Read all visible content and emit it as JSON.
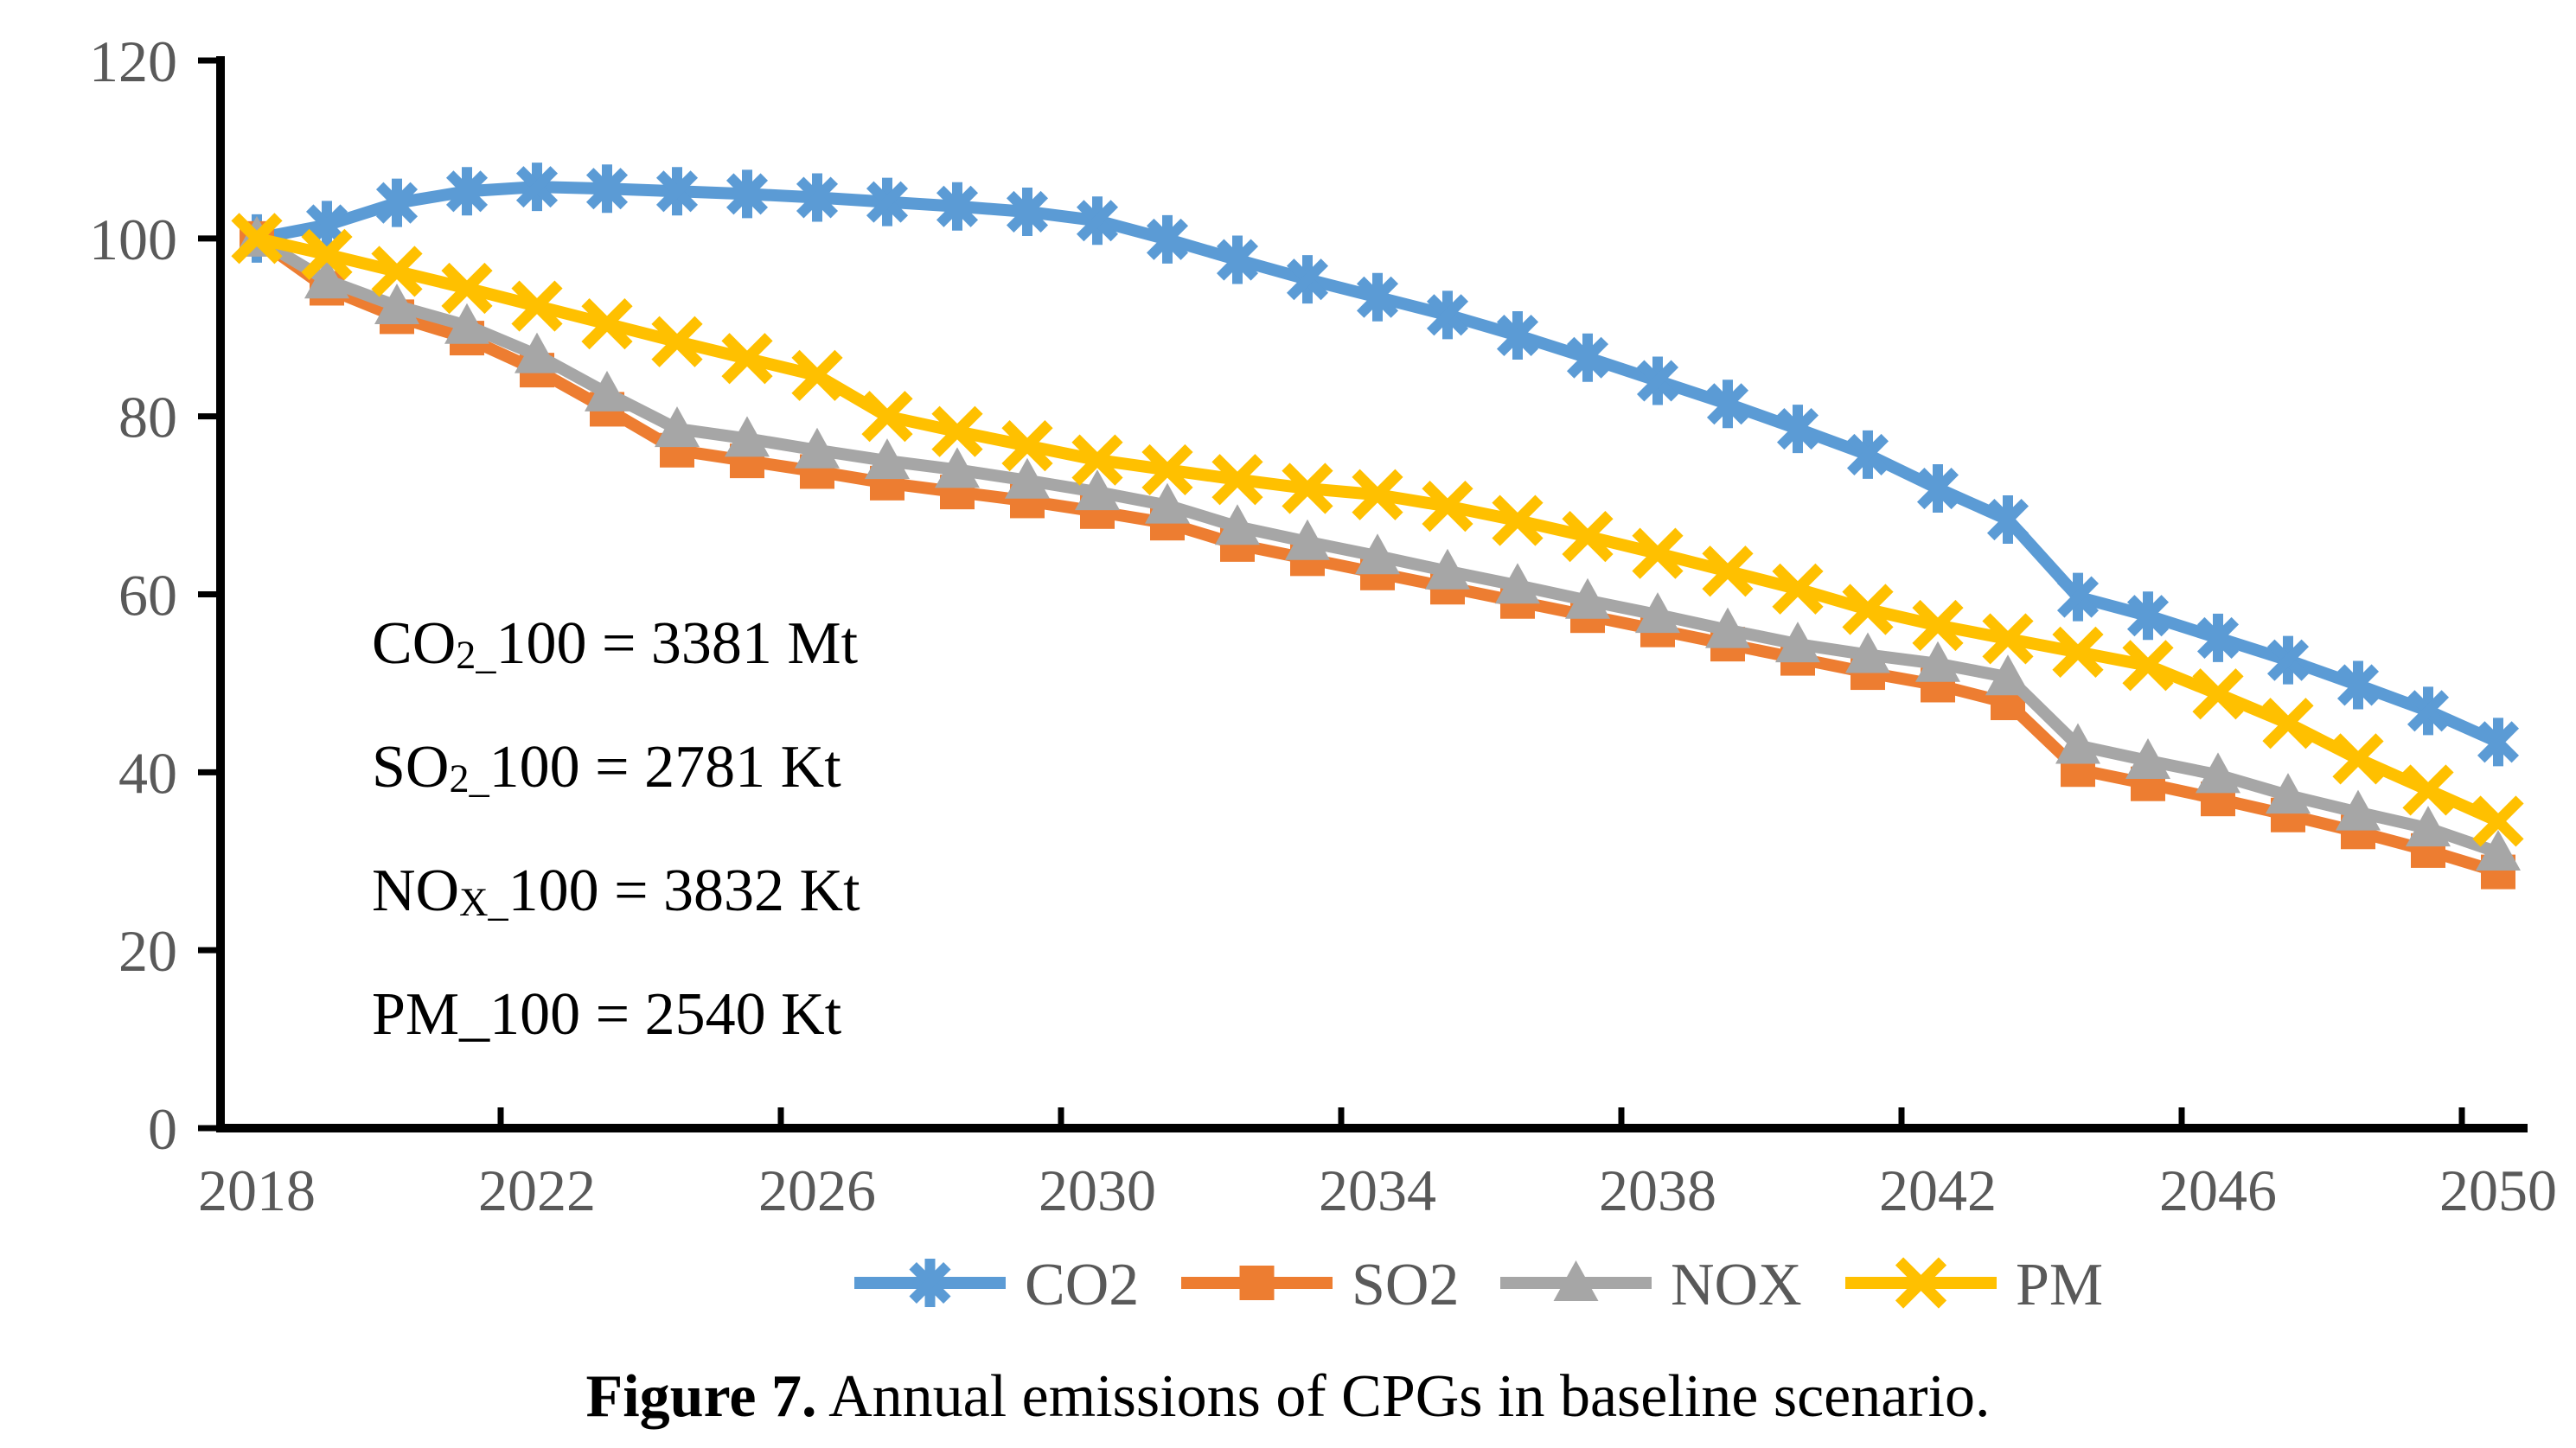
{
  "figure": {
    "caption_label": "Figure 7.",
    "caption_text": " Annual emissions of CPGs in baseline scenario."
  },
  "annotations": [
    {
      "pre": "CO",
      "sub": "2_",
      "post": "100 = 3381 Mt"
    },
    {
      "pre": "SO",
      "sub": "2_",
      "post": "100 = 2781 Kt"
    },
    {
      "pre": "NO",
      "sub": "X_",
      "post": "100 = 3832 Kt"
    },
    {
      "pre": "PM_",
      "sub": "",
      "post": "100 = 2540 Kt"
    }
  ],
  "colors": {
    "axis": "#000000",
    "tick_label": "#595959",
    "legend_label": "#595959",
    "annotation_text": "#000000",
    "background": "#ffffff"
  },
  "chart_data": {
    "type": "line",
    "title": "",
    "xlabel": "",
    "ylabel": "",
    "grid": false,
    "legend_position": "bottom",
    "ylim": [
      0,
      120
    ],
    "y_ticks": [
      0,
      20,
      40,
      60,
      80,
      100,
      120
    ],
    "x_tick_labels": [
      "2018",
      "2022",
      "2026",
      "2030",
      "2034",
      "2038",
      "2042",
      "2046",
      "2050"
    ],
    "x": [
      2018,
      2019,
      2020,
      2021,
      2022,
      2023,
      2024,
      2025,
      2026,
      2027,
      2028,
      2029,
      2030,
      2031,
      2032,
      2033,
      2034,
      2035,
      2036,
      2037,
      2038,
      2039,
      2040,
      2041,
      2042,
      2043,
      2044,
      2045,
      2046,
      2047,
      2048,
      2049,
      2050
    ],
    "series": [
      {
        "name": "CO2",
        "color": "#5B9BD5",
        "marker": "asterisk",
        "values": [
          100,
          101.5,
          104.0,
          105.3,
          105.8,
          105.6,
          105.3,
          105.0,
          104.6,
          104.1,
          103.6,
          103.0,
          102.0,
          99.9,
          97.6,
          95.4,
          93.4,
          91.4,
          89.1,
          86.6,
          84.0,
          81.4,
          78.6,
          75.7,
          71.9,
          68.4,
          59.7,
          57.6,
          55.1,
          52.6,
          49.8,
          46.9,
          43.4
        ]
      },
      {
        "name": "SO2",
        "color": "#ED7D31",
        "marker": "square",
        "values": [
          100,
          94.4,
          91.2,
          88.8,
          85.2,
          80.8,
          76.2,
          75.0,
          73.8,
          72.5,
          71.5,
          70.5,
          69.3,
          68.0,
          65.6,
          64.0,
          62.4,
          60.8,
          59.2,
          57.6,
          56.0,
          54.4,
          52.8,
          51.2,
          49.8,
          47.8,
          40.3,
          38.7,
          37.0,
          35.2,
          33.3,
          31.2,
          28.8
        ]
      },
      {
        "name": "NOX",
        "color": "#A6A6A6",
        "marker": "triangle",
        "values": [
          100,
          95.3,
          92.4,
          90.2,
          86.9,
          82.6,
          78.6,
          77.5,
          76.2,
          75.0,
          74.0,
          72.8,
          71.5,
          70.0,
          67.6,
          65.9,
          64.3,
          62.6,
          61.0,
          59.3,
          57.7,
          56.0,
          54.4,
          53.2,
          52.2,
          50.7,
          43.0,
          41.3,
          39.7,
          37.4,
          35.5,
          33.7,
          31.0
        ]
      },
      {
        "name": "PM",
        "color": "#FFC000",
        "marker": "x",
        "values": [
          100,
          98.2,
          96.3,
          94.4,
          92.4,
          90.4,
          88.4,
          86.5,
          84.6,
          80.0,
          78.3,
          76.7,
          75.1,
          74.0,
          72.9,
          71.9,
          71.2,
          69.9,
          68.3,
          66.5,
          64.6,
          62.6,
          60.6,
          58.3,
          56.5,
          55.0,
          53.5,
          52.0,
          48.8,
          45.5,
          41.5,
          38.0,
          34.5
        ]
      }
    ]
  }
}
